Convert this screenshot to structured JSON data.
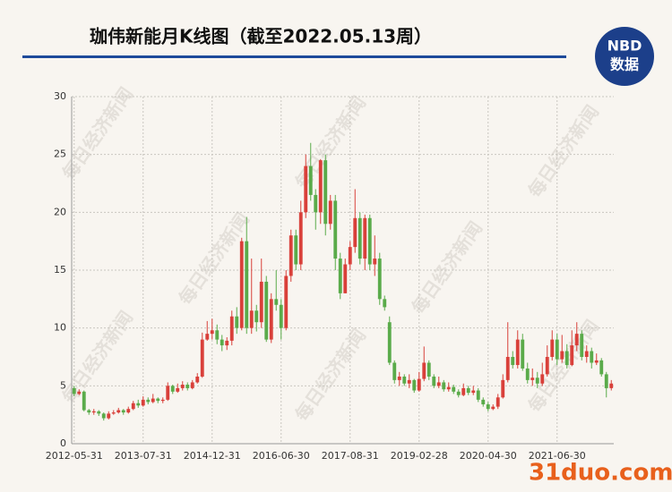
{
  "chart_data": {
    "type": "candlestick",
    "title": "珈伟新能月K线图（截至2022.05.13周）",
    "logo": [
      "NBD",
      "数据"
    ],
    "watermark": "每日经济新闻",
    "site_watermark": "31duo.com",
    "up_color": "#d9403a",
    "down_color": "#5aab4a",
    "grid": true,
    "ylim": [
      0,
      30
    ],
    "yticks": [
      0,
      5,
      10,
      15,
      20,
      25,
      30
    ],
    "categories": [
      "2012-05-31",
      null,
      null,
      null,
      null,
      null,
      null,
      null,
      null,
      null,
      null,
      null,
      null,
      null,
      "2013-07-31",
      null,
      null,
      null,
      null,
      null,
      null,
      null,
      null,
      null,
      null,
      null,
      null,
      null,
      "2014-12-31",
      null,
      null,
      null,
      null,
      null,
      null,
      null,
      null,
      null,
      null,
      null,
      null,
      null,
      "2016-06-30",
      null,
      null,
      null,
      null,
      null,
      null,
      null,
      null,
      null,
      null,
      null,
      null,
      null,
      "2017-08-31",
      null,
      null,
      null,
      null,
      null,
      null,
      null,
      null,
      null,
      null,
      null,
      null,
      null,
      "2019-02-28",
      null,
      null,
      null,
      null,
      null,
      null,
      null,
      null,
      null,
      null,
      null,
      null,
      null,
      "2020-04-30",
      null,
      null,
      null,
      null,
      null,
      null,
      null,
      null,
      null,
      null,
      null,
      null,
      null,
      "2021-06-30",
      null,
      null,
      null,
      null,
      null,
      null,
      null,
      null,
      null,
      null,
      null
    ],
    "open": [
      4.8,
      4.3,
      4.5,
      2.9,
      2.7,
      2.8,
      2.6,
      2.2,
      2.6,
      2.7,
      2.9,
      2.7,
      3.0,
      3.5,
      3.3,
      3.8,
      3.6,
      3.9,
      3.7,
      3.8,
      5.0,
      4.5,
      4.8,
      5.1,
      4.8,
      5.3,
      5.8,
      9.0,
      9.5,
      9.8,
      9.0,
      8.5,
      8.9,
      11,
      10,
      17.5,
      10,
      11.5,
      10.5,
      14,
      9,
      12.5,
      12,
      10,
      14.5,
      18,
      15.5,
      20,
      24,
      21.5,
      20,
      24.5,
      19,
      21,
      16,
      13,
      15.5,
      17,
      19.5,
      16,
      19.5,
      15.5,
      16,
      12.5,
      10.5,
      7,
      5.5,
      5.8,
      5.2,
      5.5,
      4.6,
      5.6,
      7,
      5.8,
      5.0,
      5.3,
      4.7,
      4.9,
      4.5,
      4.2,
      4.8,
      4.4,
      4.6,
      3.8,
      3.4,
      3.0,
      3.2,
      4.0,
      5.5,
      7.5,
      6.8,
      9,
      6.5,
      5.5,
      5.7,
      5.2,
      6,
      7.5,
      9,
      7.3,
      8,
      6.8,
      8.5,
      9.5,
      7.5,
      8,
      7,
      7.2,
      6,
      4.8
    ],
    "high": [
      5,
      4.7,
      4.6,
      3.0,
      3.0,
      2.9,
      2.7,
      2.8,
      2.9,
      3.1,
      3.0,
      3.2,
      3.7,
      3.8,
      4.1,
      4.0,
      4.3,
      4.0,
      4.0,
      5.3,
      5.1,
      5.2,
      5.4,
      5.3,
      5.5,
      6.1,
      9.6,
      10.6,
      10.8,
      10.3,
      9.4,
      9.2,
      11.5,
      11.8,
      17.8,
      19.6,
      16,
      12,
      16,
      14.5,
      13,
      15,
      12.5,
      15,
      18.5,
      18.5,
      21,
      25,
      26,
      22,
      24.6,
      25,
      21.5,
      21.5,
      16.5,
      16,
      17.5,
      22,
      20,
      19.8,
      19.8,
      18,
      16.5,
      12.8,
      11,
      7.2,
      6.2,
      6,
      6,
      5.6,
      6.2,
      8.4,
      7.2,
      6,
      5.8,
      5.5,
      5.3,
      5.1,
      4.7,
      5.2,
      5.0,
      5.0,
      4.8,
      4.0,
      3.6,
      3.4,
      4.3,
      6,
      10.5,
      8,
      9.8,
      9.5,
      7,
      6.5,
      6.2,
      7,
      8.5,
      9.8,
      9.5,
      9.4,
      8.6,
      9.8,
      10.5,
      9.8,
      8.5,
      8.3,
      7.8,
      7.4,
      6.2,
      5.5
    ],
    "low": [
      4.1,
      4.2,
      2.8,
      2.5,
      2.5,
      2.4,
      2.0,
      2.1,
      2.5,
      2.6,
      2.5,
      2.6,
      2.9,
      3.1,
      3.2,
      3.4,
      3.5,
      3.5,
      3.5,
      3.7,
      4.3,
      4.4,
      4.6,
      4.6,
      4.7,
      5.2,
      5.7,
      8.9,
      9.0,
      8.6,
      8.0,
      8.1,
      8.5,
      9.5,
      9.8,
      9.5,
      9.5,
      9.7,
      10,
      8.8,
      8.7,
      11.5,
      9,
      9.8,
      14,
      15,
      15,
      19.5,
      21,
      18.5,
      19,
      18,
      18.5,
      15,
      12.5,
      13,
      15,
      16.5,
      15.5,
      15,
      15,
      14.5,
      12,
      11.5,
      6.8,
      5.2,
      5.0,
      5,
      4.8,
      4.4,
      4.5,
      5.4,
      5.5,
      4.8,
      4.8,
      4.5,
      4.5,
      4.3,
      4.0,
      4.1,
      4.2,
      4.2,
      3.6,
      3.2,
      2.8,
      2.9,
      3.0,
      3.9,
      5.3,
      6.5,
      6.5,
      6.3,
      5.2,
      5.0,
      4.8,
      5,
      5.8,
      7.2,
      6.8,
      7,
      6.5,
      6.7,
      8,
      7.2,
      7,
      6.5,
      6.8,
      5.8,
      4.0,
      4.6
    ],
    "close": [
      4.3,
      4.5,
      2.9,
      2.7,
      2.8,
      2.6,
      2.2,
      2.6,
      2.7,
      2.9,
      2.7,
      3.0,
      3.5,
      3.3,
      3.8,
      3.6,
      3.9,
      3.7,
      3.8,
      5.0,
      4.5,
      4.8,
      5.1,
      4.8,
      5.3,
      5.8,
      9.0,
      9.5,
      9.8,
      9.0,
      8.5,
      8.9,
      11,
      10,
      17.5,
      10,
      11.5,
      10.5,
      14,
      9,
      12.5,
      12,
      10,
      14.5,
      18,
      15.5,
      20,
      24,
      21.5,
      20,
      24.5,
      19,
      21,
      16,
      13,
      15.5,
      17,
      19.5,
      16,
      19.5,
      15.5,
      16,
      12.5,
      11.8,
      7,
      5.5,
      5.8,
      5.2,
      5.5,
      4.6,
      5.6,
      7,
      5.8,
      5.0,
      5.3,
      4.7,
      4.9,
      4.5,
      4.2,
      4.8,
      4.4,
      4.6,
      3.8,
      3.4,
      3.0,
      3.2,
      4.0,
      5.5,
      7.5,
      6.8,
      9,
      6.5,
      5.5,
      5.7,
      5.2,
      6,
      7.5,
      9,
      7.3,
      8,
      6.8,
      8.5,
      9.5,
      7.5,
      8,
      7,
      7.2,
      6,
      4.8,
      5.2
    ]
  }
}
